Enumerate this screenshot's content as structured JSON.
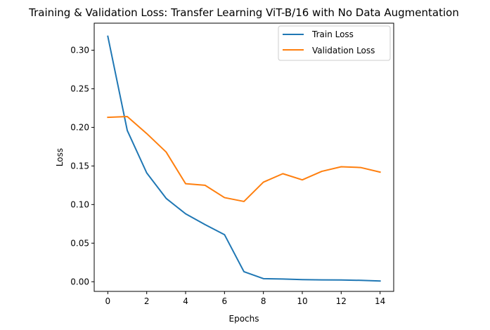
{
  "chart_data": {
    "type": "line",
    "title": "Training & Validation Loss: Transfer Learning ViT-B/16 with No Data Augmentation",
    "xlabel": "Epochs",
    "ylabel": "Loss",
    "x": [
      0,
      1,
      2,
      3,
      4,
      5,
      6,
      7,
      8,
      9,
      10,
      11,
      12,
      13,
      14
    ],
    "series": [
      {
        "name": "Train Loss",
        "color": "#1f77b4",
        "values": [
          0.318,
          0.196,
          0.141,
          0.108,
          0.088,
          0.074,
          0.061,
          0.013,
          0.004,
          0.0035,
          0.0027,
          0.0024,
          0.0023,
          0.0018,
          0.0009
        ]
      },
      {
        "name": "Validation Loss",
        "color": "#ff7f0e",
        "values": [
          0.213,
          0.214,
          0.192,
          0.168,
          0.127,
          0.125,
          0.109,
          0.104,
          0.129,
          0.14,
          0.132,
          0.143,
          0.149,
          0.148,
          0.142
        ]
      }
    ],
    "xlim": [
      -0.7,
      14.7
    ],
    "ylim": [
      -0.0125,
      0.335
    ],
    "xticks": [
      0,
      2,
      4,
      6,
      8,
      10,
      12,
      14
    ],
    "xtick_labels": [
      "0",
      "2",
      "4",
      "6",
      "8",
      "10",
      "12",
      "14"
    ],
    "yticks": [
      0.0,
      0.05,
      0.1,
      0.15,
      0.2,
      0.25,
      0.3
    ],
    "ytick_labels": [
      "0.00",
      "0.05",
      "0.10",
      "0.15",
      "0.20",
      "0.25",
      "0.30"
    ],
    "grid": false,
    "legend_position": "upper right"
  }
}
